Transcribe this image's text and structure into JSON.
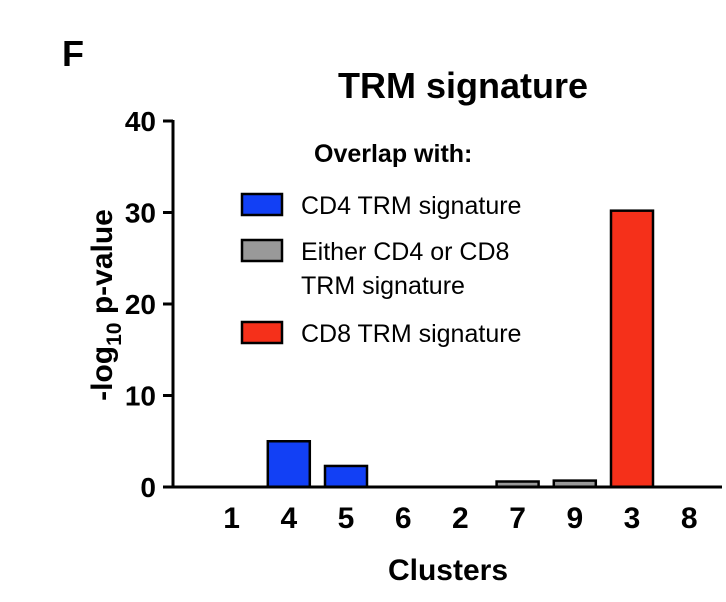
{
  "panel_label": "F",
  "chart_data": {
    "type": "bar",
    "title": "TRM signature",
    "xlabel": "Clusters",
    "ylabel_main": "-log",
    "ylabel_sub": "10",
    "ylabel_rest": " p-value",
    "ylim": [
      0,
      40
    ],
    "yticks": [
      0,
      10,
      20,
      30,
      40
    ],
    "categories": [
      "1",
      "4",
      "5",
      "6",
      "2",
      "7",
      "9",
      "3",
      "8"
    ],
    "values": [
      0,
      5.0,
      2.3,
      0,
      0,
      0.6,
      0.7,
      30.2,
      0
    ],
    "bar_groups": [
      "none",
      "cd4",
      "cd4",
      "none",
      "none",
      "either",
      "either",
      "cd8",
      "none"
    ],
    "colors": {
      "cd4": "#1240f5",
      "either": "#999999",
      "cd8": "#f5301a"
    },
    "legend": {
      "title": "Overlap with:",
      "entries": [
        {
          "group": "cd4",
          "lines": [
            "CD4 TRM signature"
          ]
        },
        {
          "group": "either",
          "lines": [
            "Either CD4 or CD8",
            "TRM signature"
          ]
        },
        {
          "group": "cd8",
          "lines": [
            "CD8 TRM signature"
          ]
        }
      ]
    }
  }
}
